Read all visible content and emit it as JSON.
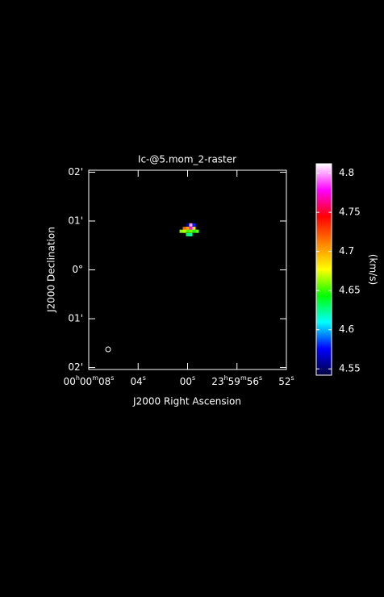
{
  "chart_data": {
    "type": "raster",
    "title": "Ic-@5.mom_2-raster",
    "x_label": "J2000 Right Ascension",
    "y_label": "J2000 Declination",
    "xlim": [
      8,
      -8
    ],
    "xticks": [
      {
        "value": 8,
        "label": "00h00m08s"
      },
      {
        "value": 4,
        "label": "04s"
      },
      {
        "value": 0,
        "label": "00s"
      },
      {
        "value": -4,
        "label": "23h59m56s"
      },
      {
        "value": -8,
        "label": "52s"
      }
    ],
    "ylim": [
      -2.04,
      2.04
    ],
    "yticks": [
      {
        "value": 2,
        "label": "02'"
      },
      {
        "value": 1,
        "label": "01'"
      },
      {
        "value": 0,
        "label": "0°"
      },
      {
        "value": -1,
        "label": "01'"
      },
      {
        "value": -2,
        "label": "02'"
      }
    ],
    "pixels": [
      {
        "x": 0.0,
        "y": 0.92,
        "value": 4.56
      },
      {
        "x": -0.26,
        "y": 0.92,
        "value": 4.8
      },
      {
        "x": -0.52,
        "y": 0.92,
        "value": 4.58
      },
      {
        "x": 0.26,
        "y": 0.85,
        "value": 4.72
      },
      {
        "x": 0.0,
        "y": 0.85,
        "value": 4.7
      },
      {
        "x": -0.26,
        "y": 0.85,
        "value": 4.78
      },
      {
        "x": -0.52,
        "y": 0.85,
        "value": 4.68
      },
      {
        "x": 0.52,
        "y": 0.79,
        "value": 4.66
      },
      {
        "x": 0.26,
        "y": 0.79,
        "value": 4.67
      },
      {
        "x": 0.0,
        "y": 0.79,
        "value": 4.65
      },
      {
        "x": -0.26,
        "y": 0.79,
        "value": 4.66
      },
      {
        "x": -0.52,
        "y": 0.79,
        "value": 4.64
      },
      {
        "x": -0.78,
        "y": 0.79,
        "value": 4.66
      },
      {
        "x": 0.0,
        "y": 0.72,
        "value": 4.63
      },
      {
        "x": -0.26,
        "y": 0.72,
        "value": 4.62
      }
    ],
    "colorbar": {
      "label": "(km/s)",
      "lim": [
        4.542,
        4.812
      ],
      "ticks": [
        4.55,
        4.6,
        4.65,
        4.7,
        4.75,
        4.8
      ],
      "colors": [
        "#000040",
        "#0000ff",
        "#00ffff",
        "#00ff00",
        "#ffff00",
        "#ff8000",
        "#ff0000",
        "#ff00ff",
        "#ffffff"
      ]
    }
  }
}
